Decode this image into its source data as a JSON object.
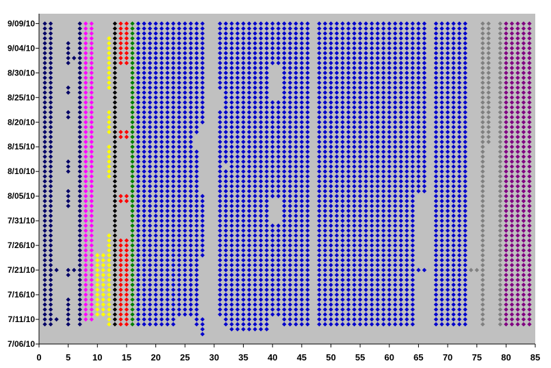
{
  "chart_data": {
    "type": "scatter",
    "title": "",
    "xlabel": "",
    "ylabel": "",
    "grid": false,
    "legend": "none",
    "plot_background": "#c0c0c0",
    "marker": "diamond",
    "xlim": [
      0,
      85
    ],
    "x_ticks": [
      0,
      5,
      10,
      15,
      20,
      25,
      30,
      35,
      40,
      45,
      50,
      55,
      60,
      65,
      70,
      75,
      80,
      85
    ],
    "ylim": [
      "2010-07-06",
      "2010-09-11"
    ],
    "y_ticks": [
      {
        "date": "2010-07-06",
        "label": "7/06/10"
      },
      {
        "date": "2010-07-11",
        "label": "7/11/10"
      },
      {
        "date": "2010-07-16",
        "label": "7/16/10"
      },
      {
        "date": "2010-07-21",
        "label": "7/21/10"
      },
      {
        "date": "2010-07-26",
        "label": "7/26/10"
      },
      {
        "date": "2010-07-31",
        "label": "7/31/10"
      },
      {
        "date": "2010-08-05",
        "label": "8/05/10"
      },
      {
        "date": "2010-08-10",
        "label": "8/10/10"
      },
      {
        "date": "2010-08-15",
        "label": "8/15/10"
      },
      {
        "date": "2010-08-20",
        "label": "8/20/10"
      },
      {
        "date": "2010-08-25",
        "label": "8/25/10"
      },
      {
        "date": "2010-08-30",
        "label": "8/30/10"
      },
      {
        "date": "2010-09-04",
        "label": "9/04/10"
      },
      {
        "date": "2010-09-09",
        "label": "9/09/10"
      }
    ],
    "series": [
      {
        "color": "#000066",
        "x": [
          1,
          2
        ],
        "date_ranges": [
          [
            "2010-07-10",
            "2010-09-09"
          ]
        ]
      },
      {
        "color": "#000066",
        "x": [
          3
        ],
        "date_ranges": [
          [
            "2010-07-11",
            "2010-07-11"
          ],
          [
            "2010-07-21",
            "2010-07-21"
          ]
        ]
      },
      {
        "color": "#000066",
        "x": [
          5
        ],
        "date_ranges": [
          [
            "2010-07-10",
            "2010-07-15"
          ],
          [
            "2010-07-20",
            "2010-07-21"
          ],
          [
            "2010-08-03",
            "2010-08-06"
          ],
          [
            "2010-08-10",
            "2010-08-12"
          ],
          [
            "2010-08-21",
            "2010-08-22"
          ],
          [
            "2010-08-26",
            "2010-08-27"
          ],
          [
            "2010-09-01",
            "2010-09-05"
          ]
        ]
      },
      {
        "color": "#000066",
        "x": [
          6
        ],
        "date_ranges": [
          [
            "2010-07-21",
            "2010-07-21"
          ],
          [
            "2010-09-02",
            "2010-09-02"
          ]
        ]
      },
      {
        "color": "#000066",
        "x": [
          7
        ],
        "date_ranges": [
          [
            "2010-07-10",
            "2010-09-09"
          ]
        ]
      },
      {
        "color": "#ff00ff",
        "x": [
          8,
          9
        ],
        "date_ranges": [
          [
            "2010-07-11",
            "2010-09-09"
          ]
        ]
      },
      {
        "color": "#ffff00",
        "x": [
          10,
          11
        ],
        "date_ranges": [
          [
            "2010-07-12",
            "2010-07-24"
          ]
        ]
      },
      {
        "color": "#ffff00",
        "x": [
          12
        ],
        "date_ranges": [
          [
            "2010-07-10",
            "2010-07-28"
          ],
          [
            "2010-08-09",
            "2010-08-15"
          ],
          [
            "2010-08-18",
            "2010-08-22"
          ],
          [
            "2010-08-27",
            "2010-09-06"
          ]
        ]
      },
      {
        "color": "#000000",
        "x": [
          13
        ],
        "date_ranges": [
          [
            "2010-07-10",
            "2010-09-09"
          ]
        ]
      },
      {
        "color": "#ff0000",
        "x": [
          14,
          15
        ],
        "date_ranges": [
          [
            "2010-07-10",
            "2010-07-27"
          ],
          [
            "2010-08-04",
            "2010-08-05"
          ],
          [
            "2010-08-17",
            "2010-08-18"
          ],
          [
            "2010-09-01",
            "2010-09-09"
          ]
        ]
      },
      {
        "color": "#008000",
        "x": [
          16
        ],
        "date_ranges": [
          [
            "2010-07-10",
            "2010-09-09"
          ]
        ]
      },
      {
        "color": "#0000cc",
        "x": [
          17,
          18,
          19,
          20,
          21,
          22,
          23
        ],
        "date_ranges": [
          [
            "2010-07-10",
            "2010-09-09"
          ]
        ]
      },
      {
        "color": "#0000cc",
        "x": [
          24,
          25,
          26
        ],
        "date_ranges": [
          [
            "2010-07-12",
            "2010-09-09"
          ]
        ]
      },
      {
        "color": "#0000cc",
        "x": [
          27
        ],
        "date_ranges": [
          [
            "2010-07-10",
            "2010-08-14"
          ],
          [
            "2010-08-18",
            "2010-09-09"
          ]
        ]
      },
      {
        "color": "#0000cc",
        "x": [
          28
        ],
        "date_ranges": [
          [
            "2010-07-08",
            "2010-07-11"
          ],
          [
            "2010-07-24",
            "2010-08-05"
          ],
          [
            "2010-08-20",
            "2010-09-09"
          ]
        ]
      },
      {
        "color": "#0000cc",
        "x": [
          31
        ],
        "date_ranges": [
          [
            "2010-07-12",
            "2010-08-22"
          ],
          [
            "2010-08-27",
            "2010-09-09"
          ]
        ]
      },
      {
        "color": "#0000cc",
        "x": [
          32
        ],
        "date_ranges": [
          [
            "2010-07-10",
            "2010-08-10"
          ],
          [
            "2010-08-12",
            "2010-09-09"
          ]
        ]
      },
      {
        "color": "#0000cc",
        "x": [
          33
        ],
        "date_ranges": [
          [
            "2010-07-09",
            "2010-09-09"
          ]
        ]
      },
      {
        "color": "#0000cc",
        "x": [
          34,
          35,
          36,
          37,
          38,
          39
        ],
        "date_ranges": [
          [
            "2010-07-09",
            "2010-09-09"
          ]
        ]
      },
      {
        "color": "#0000cc",
        "x": [
          40,
          41
        ],
        "date_ranges": [
          [
            "2010-07-12",
            "2010-07-30"
          ],
          [
            "2010-08-05",
            "2010-08-24"
          ],
          [
            "2010-09-01",
            "2010-09-09"
          ]
        ]
      },
      {
        "color": "#0000cc",
        "x": [
          42,
          43,
          44,
          45,
          46
        ],
        "date_ranges": [
          [
            "2010-07-10",
            "2010-09-09"
          ]
        ]
      },
      {
        "color": "#0000cc",
        "x": [
          48,
          49,
          50,
          51,
          52
        ],
        "date_ranges": [
          [
            "2010-07-10",
            "2010-09-09"
          ]
        ]
      },
      {
        "color": "#0000cc",
        "x": [
          53,
          54,
          55,
          56
        ],
        "date_ranges": [
          [
            "2010-07-10",
            "2010-09-09"
          ]
        ]
      },
      {
        "color": "#0000cc",
        "x": [
          57,
          58,
          59,
          60,
          61,
          62,
          63,
          64
        ],
        "date_ranges": [
          [
            "2010-07-10",
            "2010-09-09"
          ]
        ]
      },
      {
        "color": "#0000cc",
        "x": [
          65,
          66
        ],
        "date_ranges": [
          [
            "2010-07-21",
            "2010-07-21"
          ],
          [
            "2010-08-06",
            "2010-09-09"
          ]
        ]
      },
      {
        "color": "#0000cc",
        "x": [
          68,
          69,
          70,
          71,
          72,
          73
        ],
        "date_ranges": [
          [
            "2010-07-10",
            "2010-09-09"
          ]
        ]
      },
      {
        "color": "#808080",
        "x": [
          74,
          75
        ],
        "date_ranges": [
          [
            "2010-07-21",
            "2010-07-21"
          ]
        ]
      },
      {
        "color": "#808080",
        "x": [
          76
        ],
        "date_ranges": [
          [
            "2010-07-10",
            "2010-09-09"
          ]
        ]
      },
      {
        "color": "#808080",
        "x": [
          77
        ],
        "date_ranges": [
          [
            "2010-08-16",
            "2010-09-09"
          ]
        ]
      },
      {
        "color": "#808080",
        "x": [
          79
        ],
        "date_ranges": [
          [
            "2010-07-10",
            "2010-09-09"
          ]
        ]
      },
      {
        "color": "#800080",
        "x": [
          80,
          81,
          82,
          83,
          84
        ],
        "date_ranges": [
          [
            "2010-07-10",
            "2010-09-09"
          ]
        ]
      }
    ]
  }
}
